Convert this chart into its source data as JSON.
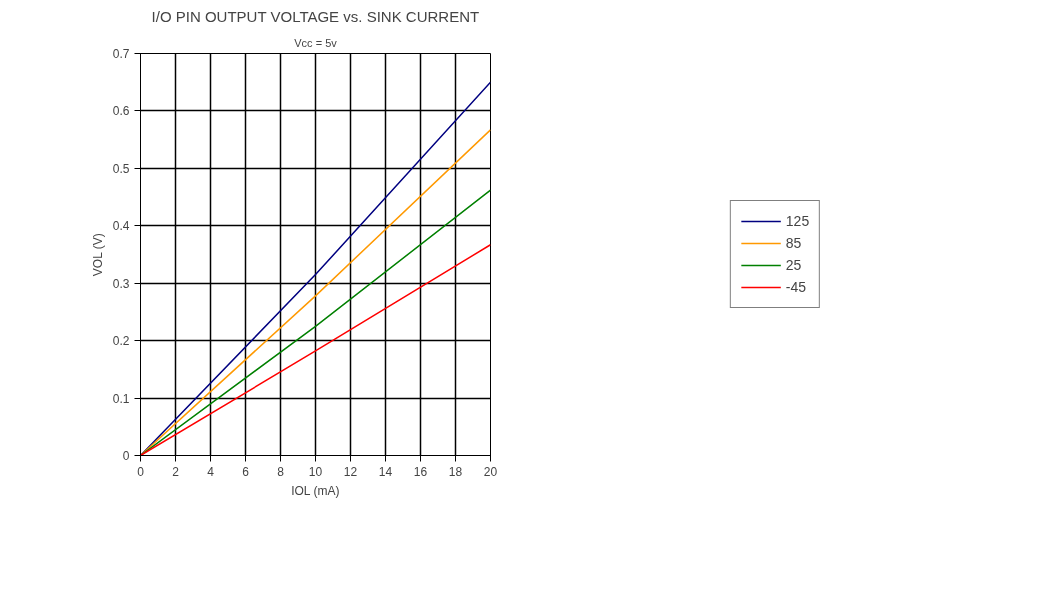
{
  "chart_data": {
    "type": "line",
    "title": "I/O PIN OUTPUT VOLTAGE vs. SINK CURRENT",
    "subtitle": "Vcc = 5v",
    "xlabel": "IOL (mA)",
    "ylabel": "VOL (V)",
    "x": [
      0,
      10,
      20
    ],
    "series": [
      {
        "name": "125",
        "color": "#000080",
        "values": [
          0,
          0.315,
          0.65
        ]
      },
      {
        "name": "85",
        "color": "#ff9900",
        "values": [
          0,
          0.278,
          0.567
        ]
      },
      {
        "name": "25",
        "color": "#008000",
        "values": [
          0,
          0.225,
          0.462
        ]
      },
      {
        "name": "-45",
        "color": "#ff0000",
        "values": [
          0,
          0.182,
          0.367
        ]
      }
    ],
    "xlim": [
      0,
      20
    ],
    "xticks": [
      0,
      2,
      4,
      6,
      8,
      10,
      12,
      14,
      16,
      18,
      20
    ],
    "ylim": [
      0,
      0.7
    ],
    "yticks": [
      0,
      0.1,
      0.2,
      0.3,
      0.4,
      0.5,
      0.6,
      0.7
    ],
    "grid": true,
    "legend": "right",
    "marker": "none",
    "line_style": "solid"
  }
}
